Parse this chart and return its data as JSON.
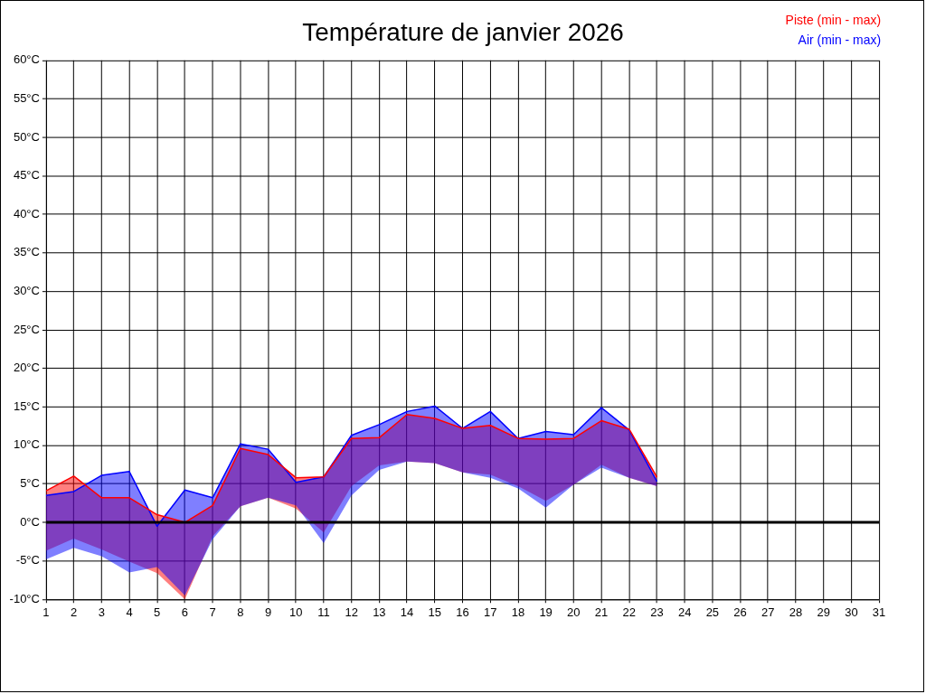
{
  "chart_data": {
    "type": "line",
    "title": "Température de janvier 2026",
    "x": [
      1,
      2,
      3,
      4,
      5,
      6,
      7,
      8,
      9,
      10,
      11,
      12,
      13,
      14,
      15,
      16,
      17,
      18,
      19,
      20,
      21,
      22,
      23
    ],
    "series": [
      {
        "name": "Piste (min - max)",
        "color": "#ff0000",
        "values": [
          4.1,
          6.0,
          3.2,
          3.2,
          1.0,
          0.0,
          2.2,
          9.6,
          8.8,
          5.8,
          5.9,
          10.9,
          11.0,
          14.0,
          13.5,
          12.2,
          12.6,
          10.9,
          10.8,
          10.9,
          13.2,
          12.1,
          5.9
        ],
        "upper": [
          4.1,
          6.0,
          3.2,
          3.2,
          1.0,
          0.0,
          2.2,
          9.6,
          8.8,
          5.8,
          5.9,
          10.9,
          11.0,
          14.0,
          13.5,
          12.2,
          12.6,
          10.9,
          10.8,
          10.9,
          13.2,
          12.1,
          5.9
        ],
        "lower": [
          -3.7,
          -2.1,
          -3.5,
          -5.1,
          -6.6,
          -10.0,
          -1.8,
          2.1,
          3.2,
          1.8,
          -1.3,
          4.7,
          7.4,
          7.9,
          7.7,
          6.5,
          6.2,
          4.7,
          2.8,
          4.9,
          7.5,
          5.8,
          4.7
        ]
      },
      {
        "name": "Air (min - max)",
        "color": "#0000ff",
        "values": [
          3.5,
          4.0,
          6.1,
          6.6,
          -0.5,
          4.2,
          3.2,
          10.2,
          9.5,
          5.2,
          5.9,
          11.3,
          12.7,
          14.4,
          15.1,
          12.2,
          14.4,
          10.9,
          11.8,
          11.4,
          14.9,
          12.0,
          5.3
        ],
        "upper": [
          3.5,
          4.0,
          6.1,
          6.6,
          -0.5,
          4.2,
          3.2,
          10.2,
          9.5,
          5.2,
          5.9,
          11.3,
          12.7,
          14.4,
          15.1,
          12.2,
          14.4,
          10.9,
          11.8,
          11.4,
          14.9,
          12.0,
          5.3
        ],
        "lower": [
          -4.8,
          -3.3,
          -4.4,
          -6.5,
          -5.8,
          -9.5,
          -2.2,
          2.1,
          3.2,
          2.2,
          -2.7,
          3.5,
          6.8,
          7.9,
          7.7,
          6.5,
          5.8,
          4.4,
          1.9,
          4.9,
          7.1,
          5.8,
          4.7
        ]
      }
    ],
    "xlim": [
      1,
      31
    ],
    "xticks": [
      1,
      2,
      3,
      4,
      5,
      6,
      7,
      8,
      9,
      10,
      11,
      12,
      13,
      14,
      15,
      16,
      17,
      18,
      19,
      20,
      21,
      22,
      23,
      24,
      25,
      26,
      27,
      28,
      29,
      30,
      31
    ],
    "ylim": [
      -10,
      60
    ],
    "yticks": [
      {
        "value": -10,
        "label": "-10°C"
      },
      {
        "value": -5,
        "label": "-5°C"
      },
      {
        "value": 0,
        "label": "0°C"
      },
      {
        "value": 5,
        "label": "5°C"
      },
      {
        "value": 10,
        "label": "10°C"
      },
      {
        "value": 15,
        "label": "15°C"
      },
      {
        "value": 20,
        "label": "20°C"
      },
      {
        "value": 25,
        "label": "25°C"
      },
      {
        "value": 30,
        "label": "30°C"
      },
      {
        "value": 35,
        "label": "35°C"
      },
      {
        "value": 40,
        "label": "40°C"
      },
      {
        "value": 45,
        "label": "45°C"
      },
      {
        "value": 50,
        "label": "50°C"
      },
      {
        "value": 55,
        "label": "55°C"
      },
      {
        "value": 60,
        "label": "60°C"
      }
    ],
    "ref_lines": [
      {
        "axis": "y",
        "value": 0,
        "color": "#000000"
      }
    ],
    "grid": true,
    "legend": "top right"
  }
}
